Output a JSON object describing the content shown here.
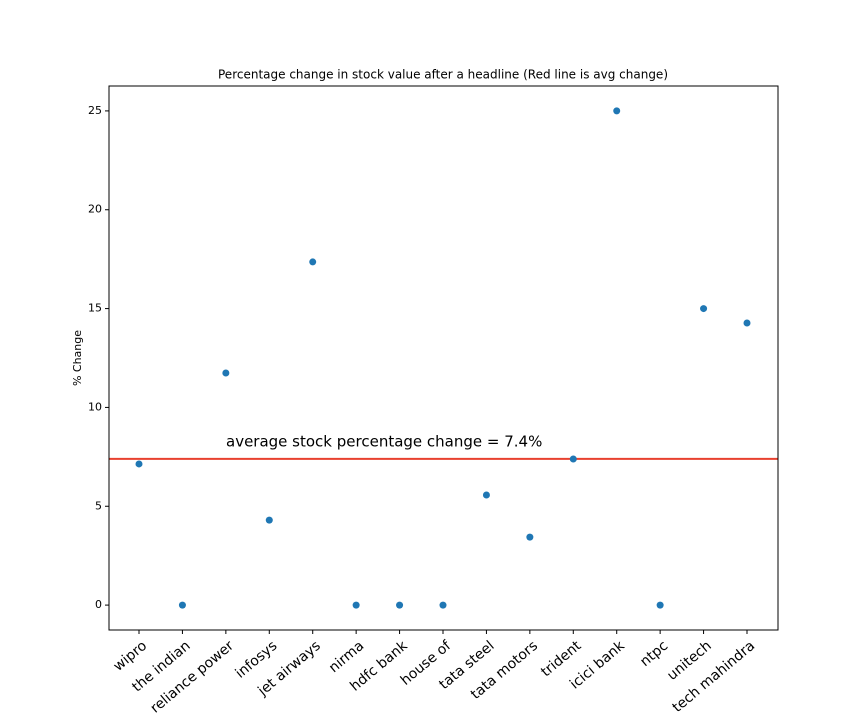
{
  "chart_data": {
    "type": "scatter",
    "title": "Percentage change in stock value after a headline (Red line is avg change)",
    "y_label": "% Change",
    "categories": [
      "wipro",
      "the indian",
      "reliance power",
      "infosys",
      "jet airways",
      "nirma",
      "hdfc bank",
      "house of",
      "tata steel",
      "tata motors",
      "trident",
      "icici bank",
      "ntpc",
      "unitech",
      "tech mahindra"
    ],
    "values": [
      7.14,
      0,
      11.74,
      4.3,
      17.36,
      0,
      0,
      0,
      5.57,
      3.44,
      7.39,
      25,
      0,
      15,
      14.27
    ],
    "color": "#1f77b4",
    "ylim": [
      -1.26,
      26.26
    ],
    "yticks": [
      0,
      5,
      10,
      15,
      20,
      25
    ],
    "average_line": {
      "value": 7.4,
      "color": "#e8412f",
      "label": "average stock percentage change = 7.4%"
    }
  }
}
